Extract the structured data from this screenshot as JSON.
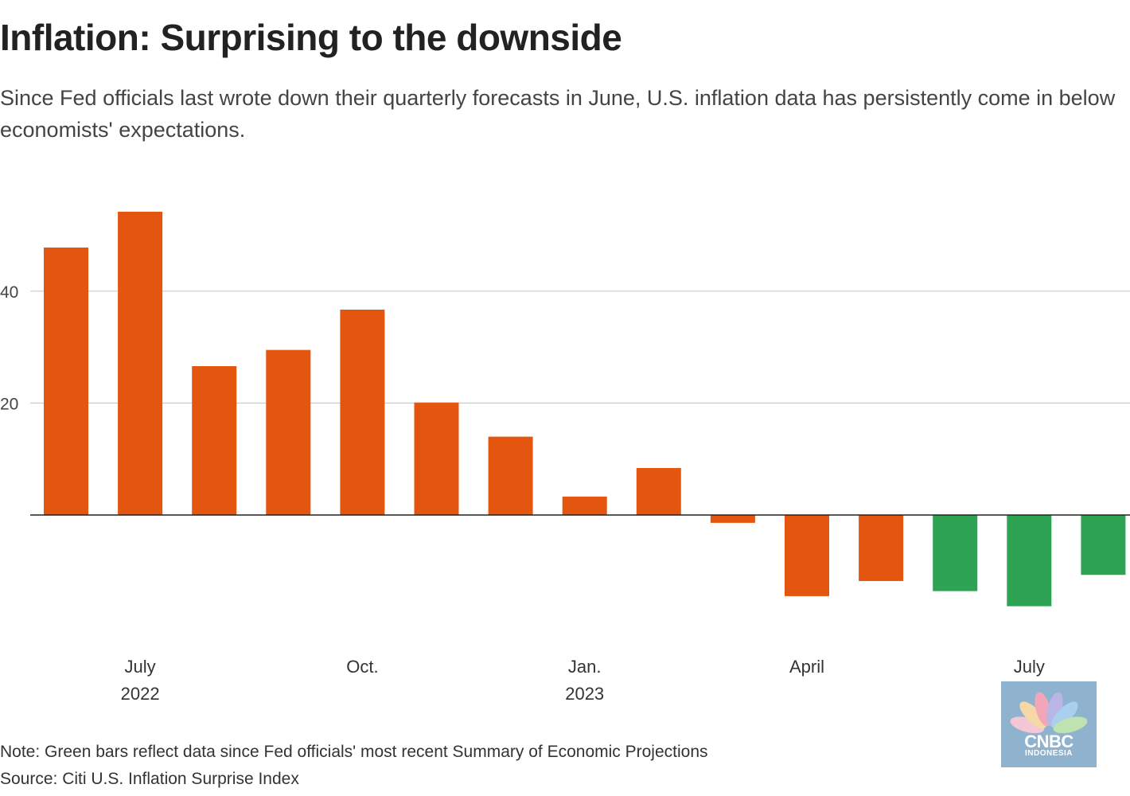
{
  "title": "Inflation: Surprising to the downside",
  "subtitle": "Since Fed officials last wrote down their quarterly forecasts in June, U.S. inflation data has persistently come in below economists' expectations.",
  "note": "Note: Green bars reflect data since Fed officials' most recent Summary of Economic Projections",
  "source": "Source: Citi U.S. Inflation Surprise Index",
  "watermark": {
    "brand": "CNBC",
    "sub": "INDONESIA"
  },
  "colors": {
    "before_sep": "#e4560f",
    "since_sep": "#2fa354",
    "grid": "#cccccc",
    "zero": "#222222"
  },
  "chart_data": {
    "type": "bar",
    "title": "Inflation: Surprising to the downside",
    "xlabel": "",
    "ylabel": "",
    "ylim": [
      -20,
      57
    ],
    "yticks": [
      20,
      40
    ],
    "grid": true,
    "categories": [
      "Jun 2022",
      "Jul 2022",
      "Aug 2022",
      "Sep 2022",
      "Oct 2022",
      "Nov 2022",
      "Dec 2022",
      "Jan 2023",
      "Feb 2023",
      "Mar 2023",
      "Apr 2023",
      "May 2023",
      "Jun 2023",
      "Jul 2023",
      "Aug 2023"
    ],
    "values": [
      47.8,
      54.2,
      26.6,
      29.5,
      36.7,
      20.1,
      14.0,
      3.3,
      8.4,
      -1.4,
      -14.5,
      -11.8,
      -13.6,
      -16.3,
      -10.7
    ],
    "since_sep": [
      false,
      false,
      false,
      false,
      false,
      false,
      false,
      false,
      false,
      false,
      false,
      false,
      true,
      true,
      true
    ],
    "x_ticks": [
      {
        "index": 1,
        "label": "July",
        "sub": "2022"
      },
      {
        "index": 4,
        "label": "Oct.",
        "sub": ""
      },
      {
        "index": 7,
        "label": "Jan.",
        "sub": "2023"
      },
      {
        "index": 10,
        "label": "April",
        "sub": ""
      },
      {
        "index": 13,
        "label": "July",
        "sub": ""
      }
    ]
  }
}
